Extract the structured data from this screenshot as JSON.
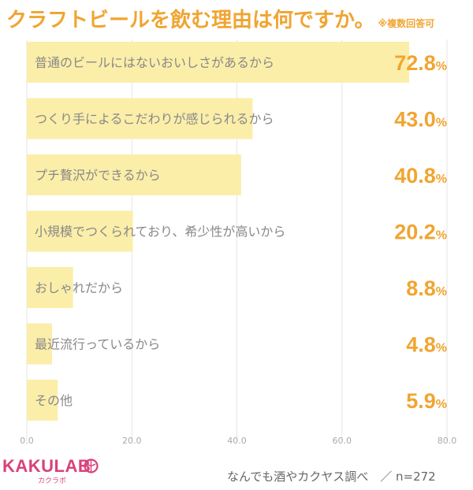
{
  "title": "クラフトビールを飲む理由は何ですか。",
  "note": "※複数回答可",
  "source": "なんでも酒やカクヤス調べ　／ n=272",
  "brand": {
    "name": "KAKULAB",
    "sub": "カクラボ"
  },
  "colors": {
    "bar": "#fbeea9",
    "accent": "#f0a531",
    "label": "#888888",
    "brand": "#d9417a"
  },
  "chart_data": {
    "type": "bar",
    "orientation": "horizontal",
    "categories": [
      "普通のビールにはないおいしさがあるから",
      "つくり手によるこだわりが感じられるから",
      "プチ贅沢ができるから",
      "小規模でつくられており、希少性が高いから",
      "おしゃれだから",
      "最近流行っているから",
      "その他"
    ],
    "values": [
      72.8,
      43.0,
      40.8,
      20.2,
      8.8,
      4.8,
      5.9
    ],
    "value_labels": [
      "72.8",
      "43.0",
      "40.8",
      "20.2",
      "8.8",
      "4.8",
      "5.9"
    ],
    "unit": "%",
    "xlim": [
      0,
      80
    ],
    "xticks": [
      0,
      20,
      40,
      60,
      80
    ],
    "xtick_labels": [
      "0.0",
      "20.0",
      "40.0",
      "60.0",
      "80.0"
    ],
    "grid": true
  }
}
